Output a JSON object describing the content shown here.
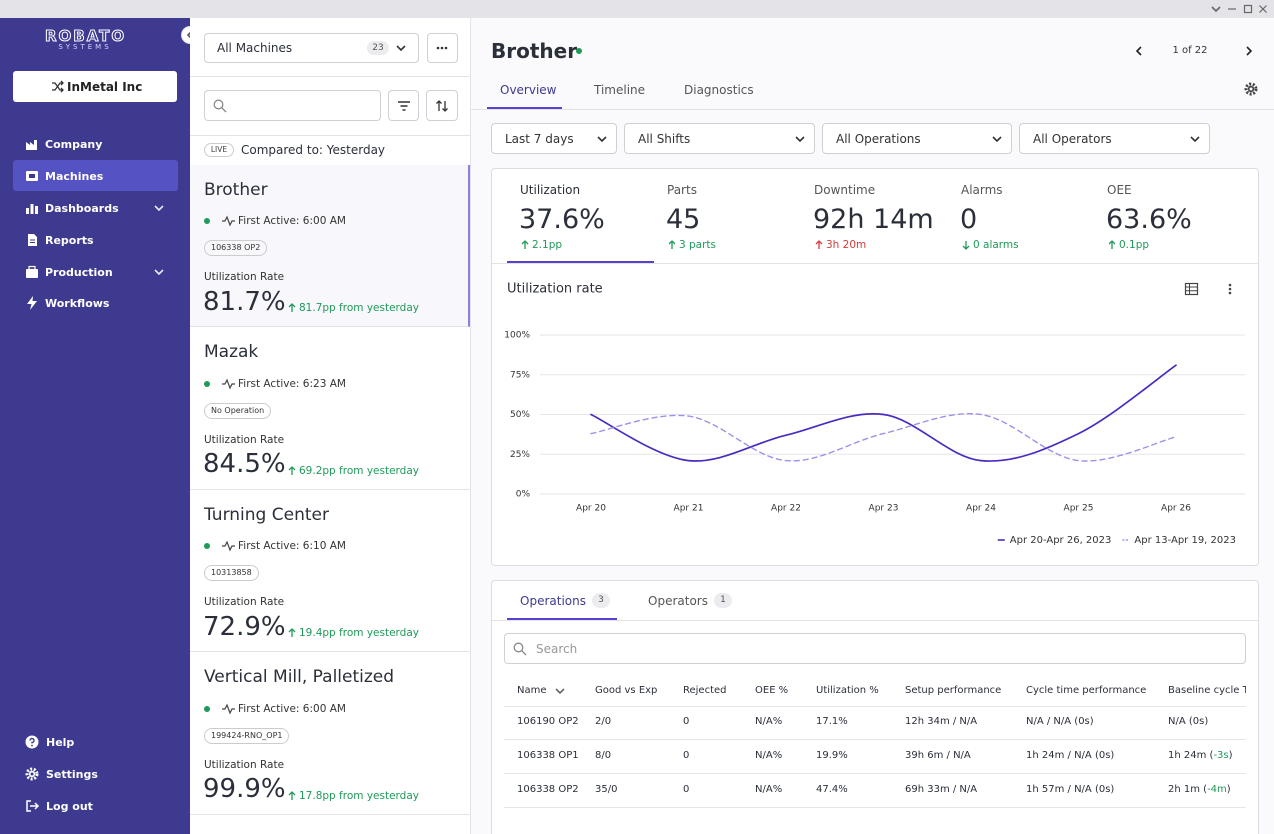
{
  "sidebar": {
    "logo": {
      "name": "ROBATO",
      "sub": "SYSTEMS"
    },
    "org": "InMetal Inc",
    "nav": [
      {
        "label": "Company",
        "icon": "company"
      },
      {
        "label": "Machines",
        "icon": "machines",
        "active": true
      },
      {
        "label": "Dashboards",
        "icon": "dashboards",
        "expandable": true
      },
      {
        "label": "Reports",
        "icon": "reports"
      },
      {
        "label": "Production",
        "icon": "production",
        "expandable": true
      },
      {
        "label": "Workflows",
        "icon": "workflows"
      }
    ],
    "footer": [
      {
        "label": "Help",
        "icon": "help"
      },
      {
        "label": "Settings",
        "icon": "settings"
      },
      {
        "label": "Log out",
        "icon": "logout"
      }
    ]
  },
  "machines": {
    "filter": {
      "label": "All Machines",
      "count": 23
    },
    "compare": {
      "badge": "LIVE",
      "text": "Compared to: Yesterday"
    },
    "cards": [
      {
        "name": "Brother",
        "first_active": "First Active: 6:00 AM",
        "tag": "106338 OP2",
        "metric_label": "Utilization Rate",
        "value": "81.7%",
        "change": "81.7pp from yesterday",
        "selected": true
      },
      {
        "name": "Mazak",
        "first_active": "First Active: 6:23 AM",
        "tag": "No Operation",
        "metric_label": "Utilization Rate",
        "value": "84.5%",
        "change": "69.2pp from yesterday"
      },
      {
        "name": "Turning Center",
        "first_active": "First Active: 6:10 AM",
        "tag": "10313858",
        "metric_label": "Utilization Rate",
        "value": "72.9%",
        "change": "19.4pp from yesterday"
      },
      {
        "name": "Vertical Mill, Palletized",
        "first_active": "First Active: 6:00 AM",
        "tag": "199424-RNO_OP1",
        "metric_label": "Utilization Rate",
        "value": "99.9%",
        "change": "17.8pp from yesterday"
      }
    ]
  },
  "detail": {
    "title": "Brother",
    "pager": "1 of 22",
    "tabs": [
      "Overview",
      "Timeline",
      "Diagnostics"
    ],
    "filters": [
      "Last 7 days",
      "All Shifts",
      "All Operations",
      "All Operators"
    ],
    "kpis": [
      {
        "label": "Utilization",
        "value": "37.6%",
        "change": "2.1pp",
        "direction": "up",
        "tone": "good"
      },
      {
        "label": "Parts",
        "value": "45",
        "change": "3 parts",
        "direction": "up",
        "tone": "good"
      },
      {
        "label": "Downtime",
        "value": "92h 14m",
        "change": "3h 20m",
        "direction": "up",
        "tone": "bad"
      },
      {
        "label": "Alarms",
        "value": "0",
        "change": "0 alarms",
        "direction": "down",
        "tone": "good"
      },
      {
        "label": "OEE",
        "value": "63.6%",
        "change": "0.1pp",
        "direction": "up",
        "tone": "good"
      }
    ]
  },
  "chart_data": {
    "type": "line",
    "title": "Utilization rate",
    "categories": [
      "Apr 20",
      "Apr 21",
      "Apr 22",
      "Apr 23",
      "Apr 24",
      "Apr 25",
      "Apr 26"
    ],
    "series": [
      {
        "name": "Apr 20-Apr 26, 2023",
        "color": "#4a2bbf",
        "dashed": false,
        "values": [
          50,
          21,
          37,
          50,
          21,
          38,
          81
        ]
      },
      {
        "name": "Apr 13-Apr 19, 2023",
        "color": "#a090ea",
        "dashed": true,
        "values": [
          38,
          49,
          21,
          38,
          50,
          21,
          36
        ]
      }
    ],
    "ylim": [
      0,
      100
    ],
    "yticks": [
      {
        "value": 0,
        "label": "0%"
      },
      {
        "value": 25,
        "label": "25%"
      },
      {
        "value": 50,
        "label": "50%"
      },
      {
        "value": 75,
        "label": "75%"
      },
      {
        "value": 100,
        "label": "100%"
      }
    ],
    "grid": true,
    "legend": "bottom-right"
  },
  "table": {
    "tabs": [
      {
        "label": "Operations",
        "count": 3
      },
      {
        "label": "Operators",
        "count": 1
      }
    ],
    "search_placeholder": "Search",
    "columns": [
      "Name",
      "Good vs Exp",
      "Rejected",
      "OEE %",
      "Utilization %",
      "Setup performance",
      "Cycle time performance",
      "Baseline cycle Time"
    ],
    "rows": [
      [
        "106190 OP2",
        "2/0",
        "0",
        "N/A%",
        "17.1%",
        "12h 34m / N/A",
        "N/A / N/A (0s)",
        [
          {
            "text": "N/A (0s)"
          }
        ]
      ],
      [
        "106338 OP1",
        "8/0",
        "0",
        "N/A%",
        "19.9%",
        "39h 6m / N/A",
        "1h 24m / N/A (0s)",
        [
          {
            "text": "1h 24m ("
          },
          {
            "text": "-3s",
            "tone": "good"
          },
          {
            "text": ")"
          }
        ]
      ],
      [
        "106338 OP2",
        "35/0",
        "0",
        "N/A%",
        "47.4%",
        "69h 33m / N/A",
        "1h 57m / N/A (0s)",
        [
          {
            "text": "2h 1m ("
          },
          {
            "text": "-4m",
            "tone": "good"
          },
          {
            "text": ")"
          }
        ]
      ]
    ]
  }
}
